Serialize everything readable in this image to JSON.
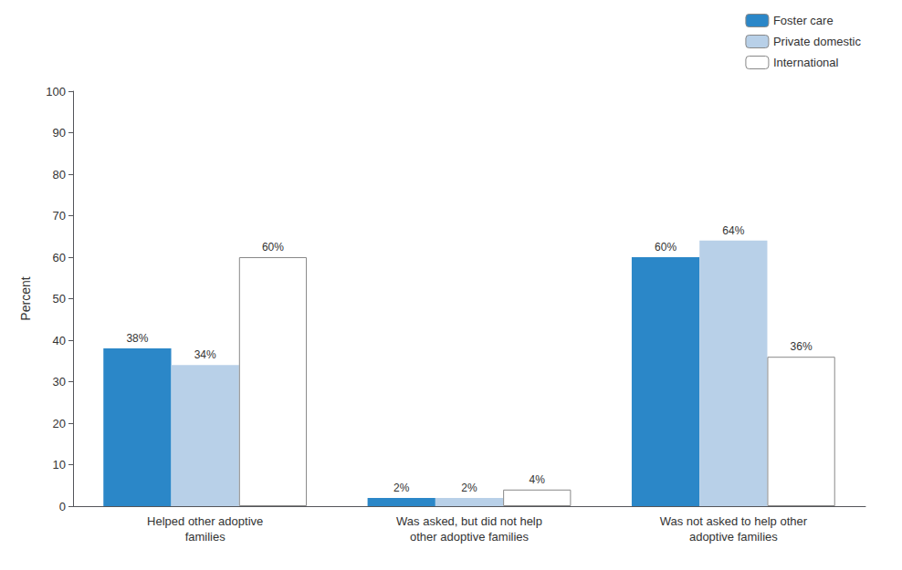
{
  "chart_data": {
    "type": "bar",
    "categories": [
      "Helped other adoptive\nfamilies",
      "Was asked, but did not help\nother adoptive families",
      "Was not asked to help other\nadoptive families"
    ],
    "series": [
      {
        "name": "Foster care",
        "color": "#2b87c8",
        "values": [
          38,
          2,
          60
        ],
        "value_labels": [
          "38%",
          "2%",
          "60%"
        ]
      },
      {
        "name": "Private domestic",
        "color": "#b8d0e8",
        "values": [
          34,
          2,
          64
        ],
        "value_labels": [
          "34%",
          "2%",
          "64%"
        ]
      },
      {
        "name": "International",
        "color": "#ffffff",
        "values": [
          60,
          4,
          36
        ],
        "value_labels": [
          "60%",
          "4%",
          "36%"
        ]
      }
    ],
    "ylabel": "Percent",
    "ylim": [
      0,
      100
    ],
    "yticks": [
      0,
      10,
      20,
      30,
      40,
      50,
      60,
      70,
      80,
      90,
      100
    ],
    "grid": false,
    "legend": "upper right",
    "data_labels": true
  }
}
